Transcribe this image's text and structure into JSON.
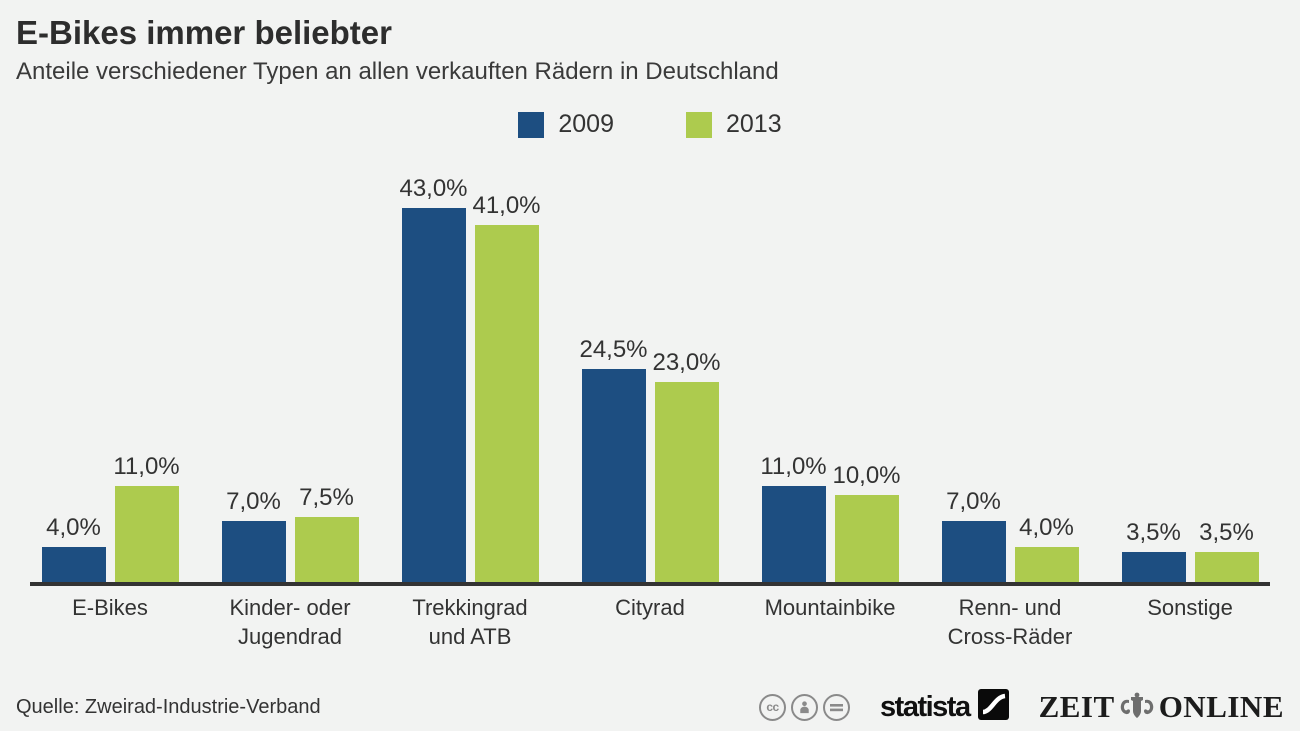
{
  "header": {
    "title": "E-Bikes immer beliebter",
    "subtitle": "Anteile verschiedener Typen an allen verkauften Rädern in Deutschland"
  },
  "legend": [
    {
      "label": "2009",
      "color": "#1d4e81"
    },
    {
      "label": "2013",
      "color": "#adcb4e"
    }
  ],
  "chart_data": {
    "type": "bar",
    "title": "E-Bikes immer beliebter",
    "subtitle": "Anteile verschiedener Typen an allen verkauften Rädern in Deutschland",
    "categories": [
      "E-Bikes",
      "Kinder- oder Jugendrad",
      "Trekkingrad und ATB",
      "Cityrad",
      "Mountainbike",
      "Renn- und Cross-Räder",
      "Sonstige"
    ],
    "categories_display": [
      "E-Bikes",
      "Kinder- oder\nJugendrad",
      "Trekkingrad\nund ATB",
      "Cityrad",
      "Mountainbike",
      "Renn- und\nCross-Räder",
      "Sonstige"
    ],
    "series": [
      {
        "name": "2009",
        "color": "#1d4e81",
        "values": [
          4.0,
          7.0,
          43.0,
          24.5,
          11.0,
          7.0,
          3.5
        ],
        "labels": [
          "4,0%",
          "7,0%",
          "43,0%",
          "24,5%",
          "11,0%",
          "7,0%",
          "3,5%"
        ]
      },
      {
        "name": "2013",
        "color": "#adcb4e",
        "values": [
          11.0,
          7.5,
          41.0,
          23.0,
          10.0,
          4.0,
          3.5
        ],
        "labels": [
          "11,0%",
          "7,5%",
          "41,0%",
          "23,0%",
          "10,0%",
          "4,0%",
          "3,5%"
        ]
      }
    ],
    "unit": "%",
    "ylim": [
      0,
      50
    ],
    "grid": false,
    "legend_position": "top-center",
    "axis_color": "#333333"
  },
  "footer": {
    "source": "Quelle: Zweirad-Industrie-Verband",
    "license_icons": [
      {
        "name": "cc-icon",
        "glyph": "cc"
      },
      {
        "name": "cc-by-person-icon",
        "glyph": "person"
      },
      {
        "name": "cc-nd-icon",
        "glyph": "equals"
      }
    ],
    "statista_label": "statista",
    "zeit_logo": {
      "left": "ZEIT",
      "right": "ONLINE"
    }
  },
  "colors": {
    "background": "#f2f3f2",
    "bar_2009": "#1d4e81",
    "bar_2013": "#adcb4e",
    "axis": "#333333",
    "text": "#333333",
    "license_gray": "#8a8a8a"
  }
}
